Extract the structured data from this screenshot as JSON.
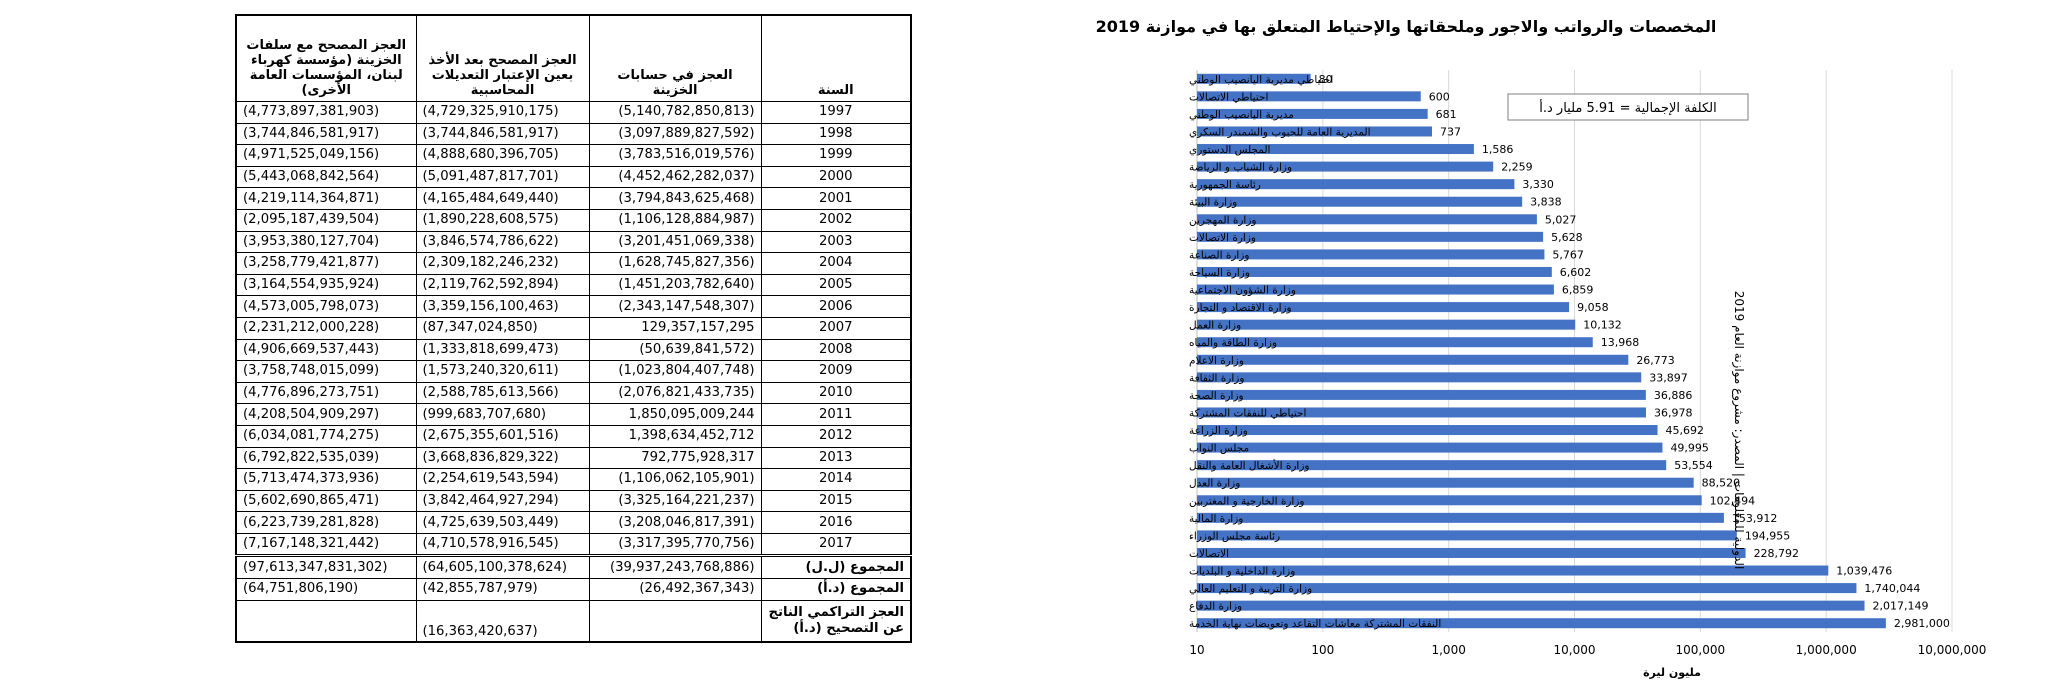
{
  "table": {
    "headers": {
      "col_corrected": "العجز المصحح مع سلفات الخزينة (مؤسسة كهرباء لبنان، المؤسسات العامة الأخرى)",
      "col_adjusted": "العجز المصحح بعد الأخذ بعين الإعتبار التعديلات المحاسبية",
      "col_treasury": "العجز في حسابات الخزينة",
      "col_year": "السنة"
    },
    "rows": [
      {
        "corrected": "(4,773,897,381,903)",
        "adjusted": "(4,729,325,910,175)",
        "treasury": "(5,140,782,850,813)",
        "year": "1997"
      },
      {
        "corrected": "(3,744,846,581,917)",
        "adjusted": "(3,744,846,581,917)",
        "treasury": "(3,097,889,827,592)",
        "year": "1998"
      },
      {
        "corrected": "(4,971,525,049,156)",
        "adjusted": "(4,888,680,396,705)",
        "treasury": "(3,783,516,019,576)",
        "year": "1999"
      },
      {
        "corrected": "(5,443,068,842,564)",
        "adjusted": "(5,091,487,817,701)",
        "treasury": "(4,452,462,282,037)",
        "year": "2000"
      },
      {
        "corrected": "(4,219,114,364,871)",
        "adjusted": "(4,165,484,649,440)",
        "treasury": "(3,794,843,625,468)",
        "year": "2001"
      },
      {
        "corrected": "(2,095,187,439,504)",
        "adjusted": "(1,890,228,608,575)",
        "treasury": "(1,106,128,884,987)",
        "year": "2002"
      },
      {
        "corrected": "(3,953,380,127,704)",
        "adjusted": "(3,846,574,786,622)",
        "treasury": "(3,201,451,069,338)",
        "year": "2003"
      },
      {
        "corrected": "(3,258,779,421,877)",
        "adjusted": "(2,309,182,246,232)",
        "treasury": "(1,628,745,827,356)",
        "year": "2004"
      },
      {
        "corrected": "(3,164,554,935,924)",
        "adjusted": "(2,119,762,592,894)",
        "treasury": "(1,451,203,782,640)",
        "year": "2005"
      },
      {
        "corrected": "(4,573,005,798,073)",
        "adjusted": "(3,359,156,100,463)",
        "treasury": "(2,343,147,548,307)",
        "year": "2006"
      },
      {
        "corrected": "(2,231,212,000,228)",
        "adjusted": "(87,347,024,850)",
        "treasury": "129,357,157,295",
        "year": "2007"
      },
      {
        "corrected": "(4,906,669,537,443)",
        "adjusted": "(1,333,818,699,473)",
        "treasury": "(50,639,841,572)",
        "year": "2008"
      },
      {
        "corrected": "(3,758,748,015,099)",
        "adjusted": "(1,573,240,320,611)",
        "treasury": "(1,023,804,407,748)",
        "year": "2009"
      },
      {
        "corrected": "(4,776,896,273,751)",
        "adjusted": "(2,588,785,613,566)",
        "treasury": "(2,076,821,433,735)",
        "year": "2010"
      },
      {
        "corrected": "(4,208,504,909,297)",
        "adjusted": "(999,683,707,680)",
        "treasury": "1,850,095,009,244",
        "year": "2011"
      },
      {
        "corrected": "(6,034,081,774,275)",
        "adjusted": "(2,675,355,601,516)",
        "treasury": "1,398,634,452,712",
        "year": "2012"
      },
      {
        "corrected": "(6,792,822,535,039)",
        "adjusted": "(3,668,836,829,322)",
        "treasury": "792,775,928,317",
        "year": "2013"
      },
      {
        "corrected": "(5,713,474,373,936)",
        "adjusted": "(2,254,619,543,594)",
        "treasury": "(1,106,062,105,901)",
        "year": "2014"
      },
      {
        "corrected": "(5,602,690,865,471)",
        "adjusted": "(3,842,464,927,294)",
        "treasury": "(3,325,164,221,237)",
        "year": "2015"
      },
      {
        "corrected": "(6,223,739,281,828)",
        "adjusted": "(4,725,639,503,449)",
        "treasury": "(3,208,046,817,391)",
        "year": "2016"
      },
      {
        "corrected": "(7,167,148,321,442)",
        "adjusted": "(4,710,578,916,545)",
        "treasury": "(3,317,395,770,756)",
        "year": "2017"
      }
    ],
    "totals": [
      {
        "corrected": "(97,613,347,831,302)",
        "adjusted": "(64,605,100,378,624)",
        "treasury": "(39,937,243,768,886)",
        "label": "المجموع (ل.ل)"
      },
      {
        "corrected": "(64,751,806,190)",
        "adjusted": "(42,855,787,979)",
        "treasury": "(26,492,367,343)",
        "label": "المجموع (د.أ)"
      }
    ],
    "cumulative": {
      "corrected": "",
      "adjusted": "(16,363,420,637)",
      "treasury": "",
      "label": "العجز التراكمي الناتج عن التصحيح (د.أ)"
    }
  },
  "chart_data": {
    "type": "bar",
    "orientation": "horizontal",
    "title": "المخصصات والرواتب والاجور وملحقاتها والإحتياط المتعلق بها في موازنة 2019",
    "annotation": "الكلفة الإجمالية = 5.91 مليار د.أ",
    "xlabel": "مليون ليرة",
    "ylabel": "",
    "x_scale": "log",
    "xlim": [
      10,
      10000000
    ],
    "x_ticks": [
      "10",
      "100",
      "1,000",
      "10,000",
      "100,000",
      "1,000,000",
      "10,000,000"
    ],
    "side_note": "الدولية للمعلومات | المصدر: مشروع موازنة العام 2019",
    "grid": "vertical",
    "color": "#4472c4",
    "categories": [
      "احتياطي مديرية اليانصيب الوطني",
      "احتياطي الاتصالات",
      "مديرية اليانصيب الوطني",
      "المديرية العامة للحبوب والشمندر السكري",
      "المجلس الدستوري",
      "وزارة الشباب و الرياضة",
      "رئاسة الجمهورية",
      "وزارة البيئة",
      "وزارة المهجرين",
      "وزارة الاتصالات",
      "وزارة الصناعة",
      "وزارة السياحة",
      "وزارة الشؤون الاجتماعية",
      "وزارة الاقتصاد و التجارة",
      "وزارة العمل",
      "وزارة الطاقة والمياه",
      "وزارة الاعلام",
      "وزارة الثقافة",
      "وزارة الصحة",
      "احتياطي للنفقات المشتركة",
      "وزارة الزراعة",
      "مجلس النواب",
      "وزارة الأشغال العامة والنقل",
      "وزارة العدل",
      "وزارة الخارجية و المغتربين",
      "وزارة المالية",
      "رئاسة مجلس الوزراء",
      "الاتصالات",
      "وزارة الداخلية و البلديات",
      "وزارة التربية و التعليم العالي",
      "وزارة الدفاع",
      "النفقات المشتركة معاشات التقاعد وتعويضات نهاية الخدمة"
    ],
    "values": [
      80,
      600,
      681,
      737,
      1586,
      2259,
      3330,
      3838,
      5027,
      5628,
      5767,
      6602,
      6859,
      9058,
      10132,
      13968,
      26773,
      33897,
      36886,
      36978,
      45692,
      49995,
      53554,
      88520,
      102494,
      153912,
      194955,
      228792,
      1039476,
      1740044,
      2017149,
      2981000
    ],
    "value_labels": [
      "80",
      "600",
      "681",
      "737",
      "1,586",
      "2,259",
      "3,330",
      "3,838",
      "5,027",
      "5,628",
      "5,767",
      "6,602",
      "6,859",
      "9,058",
      "10,132",
      "13,968",
      "26,773",
      "33,897",
      "36,886",
      "36,978",
      "45,692",
      "49,995",
      "53,554",
      "88,520",
      "102,494",
      "153,912",
      "194,955",
      "228,792",
      "1,039,476",
      "1,740,044",
      "2,017,149",
      "2,981,000"
    ]
  }
}
